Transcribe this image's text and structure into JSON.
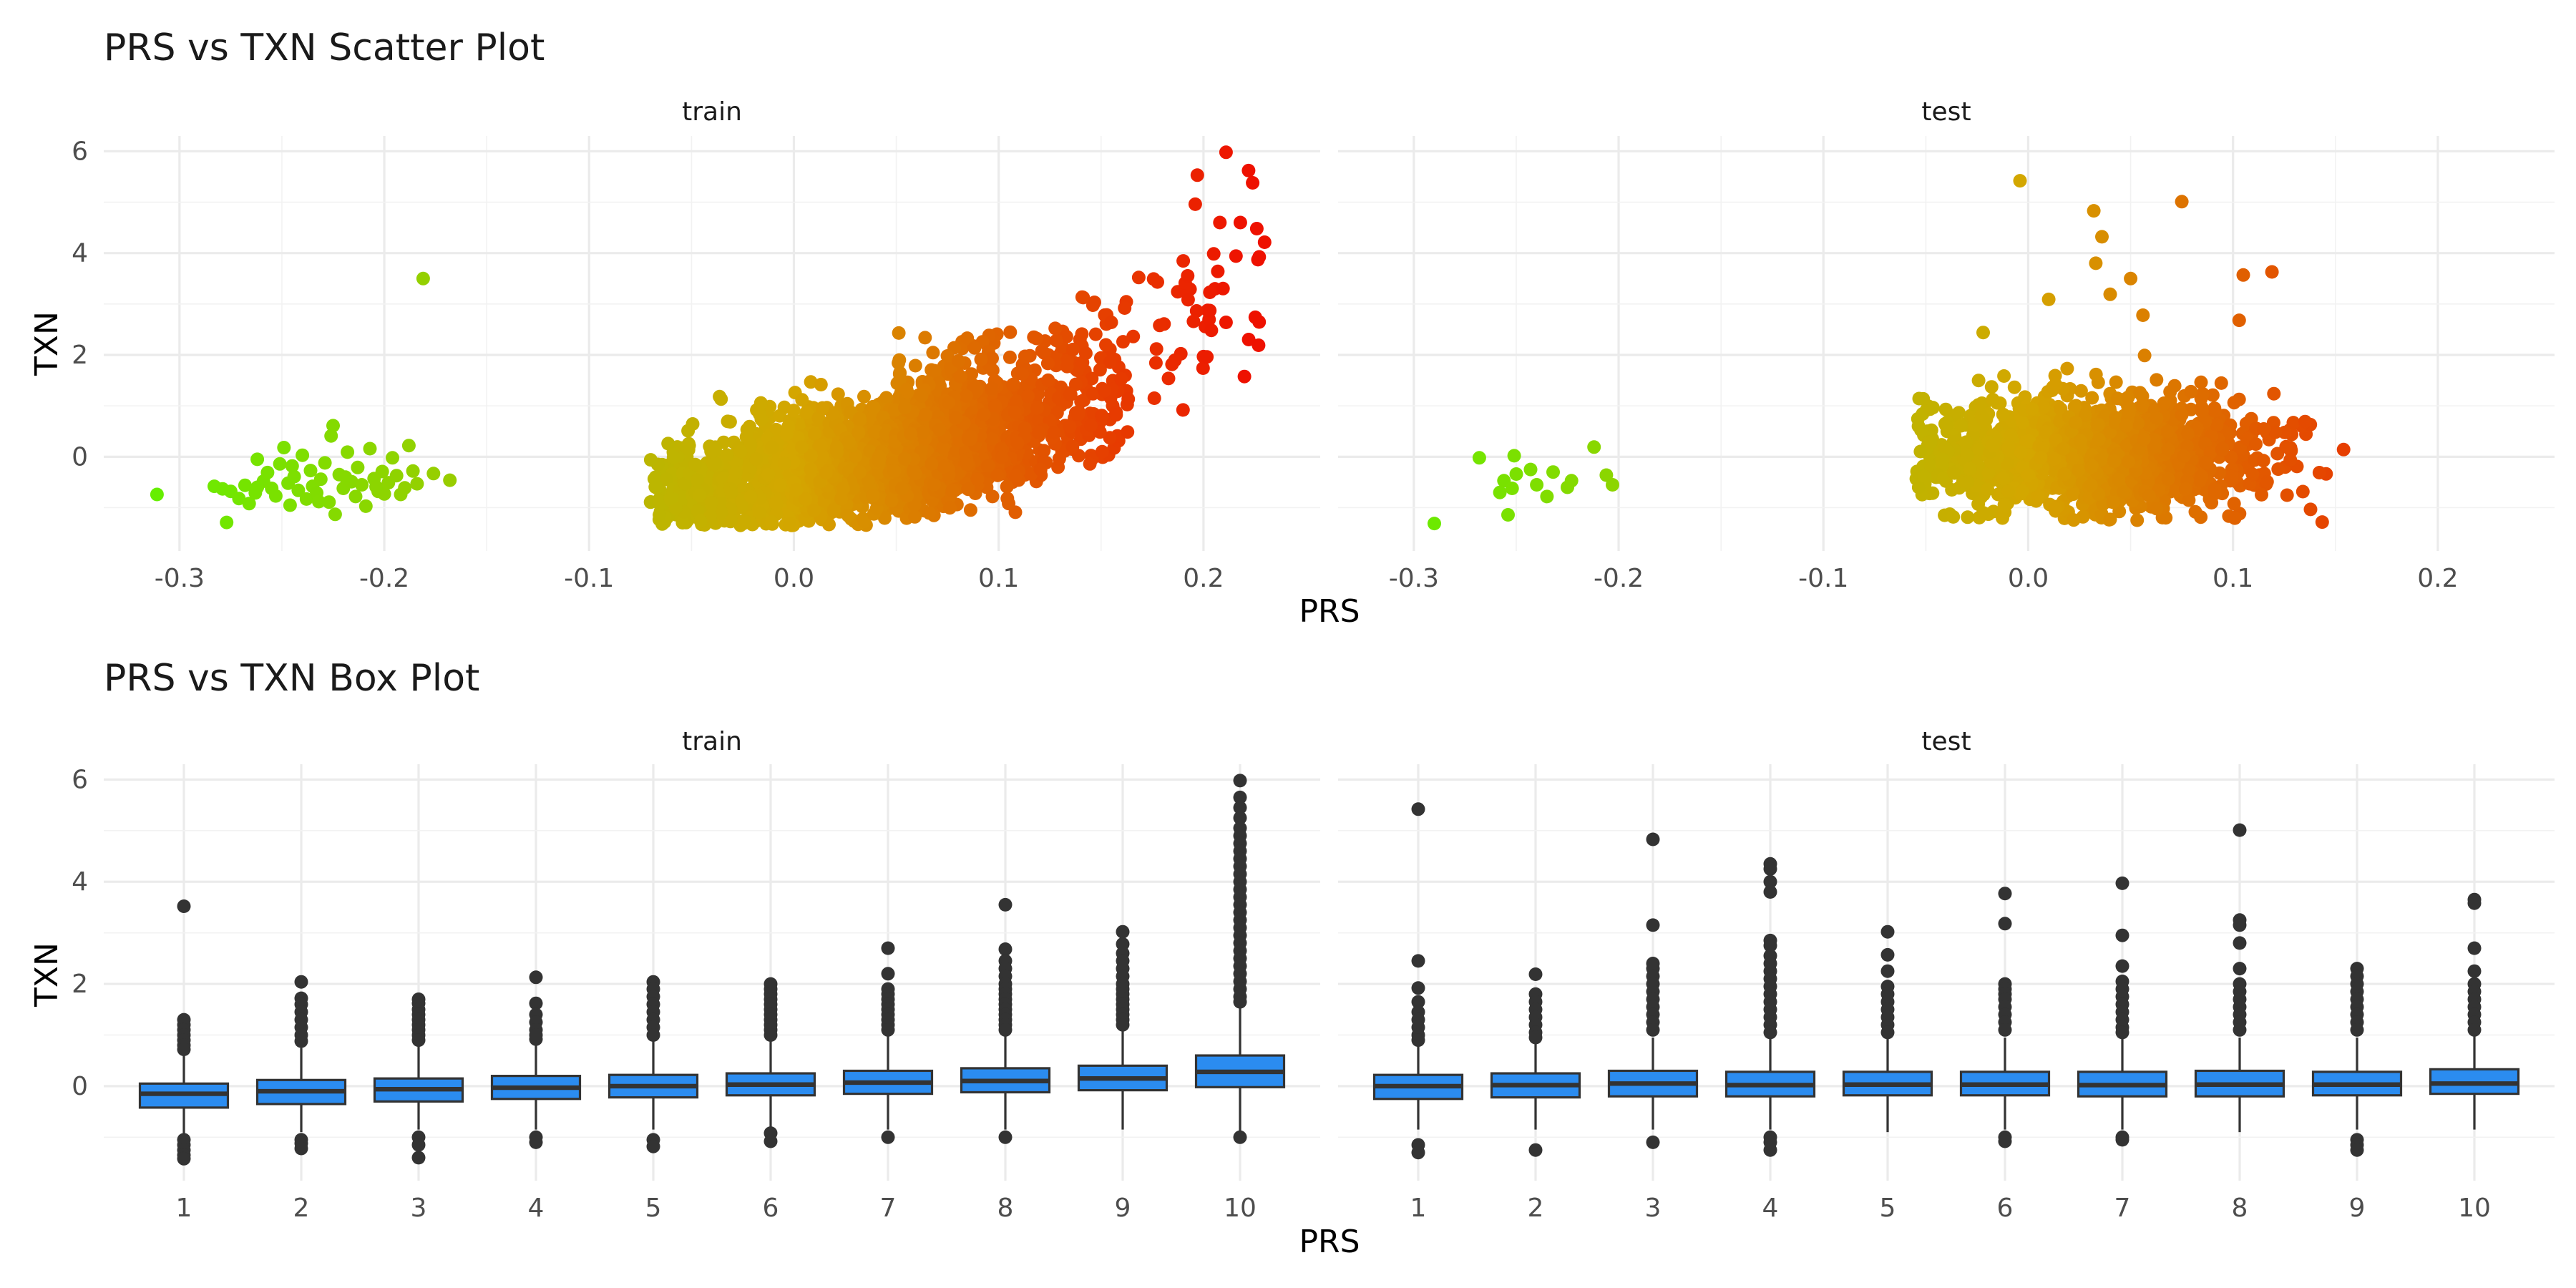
{
  "figure": {
    "scatter_title": "PRS vs TXN Scatter Plot",
    "box_title": "PRS vs TXN Box Plot",
    "x_label": "PRS",
    "y_label": "TXN",
    "facets": [
      "train",
      "test"
    ]
  },
  "chart_data": [
    {
      "type": "scatter",
      "title": "PRS vs TXN Scatter Plot",
      "xlabel": "PRS",
      "ylabel": "TXN",
      "xlim": [
        -0.33,
        0.25
      ],
      "ylim": [
        -1.85,
        6.3
      ],
      "x_ticks": [
        "-0.3",
        "-0.2",
        "-0.1",
        "0.0",
        "0.1",
        "0.2"
      ],
      "x_tick_values": [
        -0.3,
        -0.2,
        -0.1,
        0.0,
        0.1,
        0.2
      ],
      "y_ticks": [
        "0",
        "2",
        "4",
        "6"
      ],
      "y_tick_values": [
        0,
        2,
        4,
        6
      ],
      "grid": true,
      "color_scale": {
        "low": "#66ee00",
        "mid": "#d4a600",
        "high": "#ee1100",
        "by": "PRS"
      },
      "facets": [
        {
          "name": "train",
          "points": [
            [
              -0.311,
              -0.74
            ],
            [
              -0.283,
              -0.58
            ],
            [
              -0.279,
              -0.63
            ],
            [
              -0.277,
              -1.29
            ],
            [
              -0.275,
              -0.68
            ],
            [
              -0.271,
              -0.82
            ],
            [
              -0.268,
              -0.56
            ],
            [
              -0.266,
              -0.92
            ],
            [
              -0.263,
              -0.71
            ],
            [
              -0.262,
              -0.05
            ],
            [
              -0.259,
              -0.48
            ],
            [
              -0.257,
              -0.31
            ],
            [
              -0.255,
              -0.62
            ],
            [
              -0.253,
              -0.77
            ],
            [
              -0.251,
              -0.14
            ],
            [
              -0.249,
              0.18
            ],
            [
              -0.247,
              -0.52
            ],
            [
              -0.246,
              -0.95
            ],
            [
              -0.244,
              -0.39
            ],
            [
              -0.242,
              -0.66
            ],
            [
              -0.24,
              0.03
            ],
            [
              -0.238,
              -0.83
            ],
            [
              -0.236,
              -0.27
            ],
            [
              -0.235,
              -0.58
            ],
            [
              -0.233,
              -0.71
            ],
            [
              -0.231,
              -0.44
            ],
            [
              -0.229,
              -0.12
            ],
            [
              -0.227,
              -0.89
            ],
            [
              -0.226,
              0.41
            ],
            [
              -0.225,
              0.61
            ],
            [
              -0.224,
              -1.13
            ],
            [
              -0.222,
              -0.35
            ],
            [
              -0.22,
              -0.62
            ],
            [
              -0.218,
              0.09
            ],
            [
              -0.216,
              -0.49
            ],
            [
              -0.214,
              -0.78
            ],
            [
              -0.213,
              -0.21
            ],
            [
              -0.211,
              -0.55
            ],
            [
              -0.209,
              -0.97
            ],
            [
              -0.207,
              0.16
            ],
            [
              -0.205,
              -0.43
            ],
            [
              -0.203,
              -0.68
            ],
            [
              -0.201,
              -0.29
            ],
            [
              -0.2,
              -0.73
            ],
            [
              -0.198,
              -0.51
            ],
            [
              -0.196,
              -0.02
            ],
            [
              -0.194,
              -0.37
            ],
            [
              -0.192,
              -0.74
            ],
            [
              -0.19,
              -0.61
            ],
            [
              -0.188,
              0.22
            ],
            [
              -0.186,
              -0.28
            ],
            [
              -0.184,
              -0.53
            ],
            [
              -0.181,
              3.5
            ],
            [
              -0.176,
              -0.33
            ],
            [
              -0.168,
              -0.46
            ],
            [
              -0.262,
              -0.6
            ],
            [
              -0.245,
              -0.18
            ],
            [
              -0.232,
              -0.88
            ],
            [
              -0.219,
              -0.4
            ],
            [
              -0.204,
              -0.59
            ]
          ]
        },
        {
          "name": "test",
          "points": [
            [
              -0.29,
              -1.31
            ],
            [
              -0.268,
              -0.02
            ],
            [
              -0.258,
              -0.7
            ],
            [
              -0.256,
              -0.47
            ],
            [
              -0.254,
              -1.14
            ],
            [
              -0.252,
              -0.62
            ],
            [
              -0.251,
              0.02
            ],
            [
              -0.25,
              -0.34
            ],
            [
              -0.243,
              -0.25
            ],
            [
              -0.24,
              -0.55
            ],
            [
              -0.235,
              -0.78
            ],
            [
              -0.232,
              -0.3
            ],
            [
              -0.225,
              -0.6
            ],
            [
              -0.223,
              -0.47
            ],
            [
              -0.212,
              0.19
            ],
            [
              -0.206,
              -0.36
            ],
            [
              -0.203,
              -0.55
            ],
            [
              -0.004,
              5.42
            ],
            [
              0.032,
              4.83
            ],
            [
              0.036,
              4.32
            ],
            [
              0.075,
              5.01
            ],
            [
              0.105,
              3.57
            ],
            [
              0.119,
              3.63
            ],
            [
              0.05,
              3.5
            ],
            [
              0.033,
              3.8
            ],
            [
              0.04,
              3.19
            ],
            [
              0.01,
              3.09
            ],
            [
              0.103,
              2.68
            ],
            [
              0.056,
              2.78
            ],
            [
              -0.022,
              2.44
            ]
          ]
        }
      ]
    },
    {
      "type": "box",
      "title": "PRS vs TXN Box Plot",
      "xlabel": "PRS",
      "ylabel": "TXN",
      "categories": [
        "1",
        "2",
        "3",
        "4",
        "5",
        "6",
        "7",
        "8",
        "9",
        "10"
      ],
      "ylim": [
        -1.85,
        6.3
      ],
      "y_ticks": [
        "0",
        "2",
        "4",
        "6"
      ],
      "y_tick_values": [
        0,
        2,
        4,
        6
      ],
      "fill_color": "#2b8cf0",
      "grid": true,
      "facets": [
        {
          "name": "train",
          "boxes": [
            {
              "q1": -0.42,
              "median": -0.15,
              "q3": 0.05,
              "low": -0.95,
              "high": 0.6,
              "outliers": [
                3.52,
                1.3,
                1.2,
                1.1,
                1.0,
                0.9,
                0.8,
                0.72,
                -1.05,
                -1.15,
                -1.25,
                -1.35,
                -1.42
              ]
            },
            {
              "q1": -0.35,
              "median": -0.1,
              "q3": 0.12,
              "low": -0.9,
              "high": 0.75,
              "outliers": [
                2.04,
                1.72,
                1.6,
                1.45,
                1.3,
                1.15,
                1.0,
                0.88,
                -1.05,
                -1.12,
                -1.22
              ]
            },
            {
              "q1": -0.3,
              "median": -0.06,
              "q3": 0.15,
              "low": -0.85,
              "high": 0.8,
              "outliers": [
                1.7,
                1.62,
                1.5,
                1.4,
                1.3,
                1.2,
                1.1,
                1.0,
                0.9,
                -1.0,
                -1.15,
                -1.4
              ]
            },
            {
              "q1": -0.25,
              "median": -0.03,
              "q3": 0.2,
              "low": -0.85,
              "high": 0.85,
              "outliers": [
                2.13,
                1.62,
                1.4,
                1.25,
                1.1,
                1.0,
                0.92,
                -1.0,
                -1.1
              ]
            },
            {
              "q1": -0.22,
              "median": 0.0,
              "q3": 0.22,
              "low": -0.85,
              "high": 0.88,
              "outliers": [
                2.04,
                1.9,
                1.75,
                1.6,
                1.45,
                1.3,
                1.15,
                1.0,
                -1.05,
                -1.18
              ]
            },
            {
              "q1": -0.18,
              "median": 0.03,
              "q3": 0.25,
              "low": -0.8,
              "high": 0.95,
              "outliers": [
                2.0,
                1.9,
                1.8,
                1.7,
                1.6,
                1.5,
                1.4,
                1.3,
                1.2,
                1.1,
                1.0,
                -0.92,
                -1.08
              ]
            },
            {
              "q1": -0.15,
              "median": 0.07,
              "q3": 0.3,
              "low": -0.85,
              "high": 1.0,
              "outliers": [
                2.7,
                2.2,
                1.9,
                1.8,
                1.7,
                1.6,
                1.5,
                1.4,
                1.3,
                1.2,
                1.1,
                -1.0
              ]
            },
            {
              "q1": -0.12,
              "median": 0.1,
              "q3": 0.35,
              "low": -0.85,
              "high": 1.05,
              "outliers": [
                3.55,
                2.68,
                2.45,
                2.3,
                2.15,
                2.0,
                1.9,
                1.8,
                1.7,
                1.6,
                1.5,
                1.4,
                1.3,
                1.2,
                1.1,
                -1.0
              ]
            },
            {
              "q1": -0.08,
              "median": 0.15,
              "q3": 0.4,
              "low": -0.85,
              "high": 1.1,
              "outliers": [
                3.02,
                2.78,
                2.6,
                2.45,
                2.3,
                2.15,
                2.0,
                1.9,
                1.8,
                1.7,
                1.6,
                1.5,
                1.4,
                1.3,
                1.2
              ]
            },
            {
              "q1": -0.02,
              "median": 0.28,
              "q3": 0.6,
              "low": -0.95,
              "high": 1.55,
              "outliers": [
                5.98,
                5.65,
                5.45,
                5.25,
                5.05,
                4.9,
                4.75,
                4.6,
                4.45,
                4.3,
                4.15,
                4.0,
                3.85,
                3.7,
                3.55,
                3.4,
                3.25,
                3.1,
                2.95,
                2.8,
                2.65,
                2.5,
                2.35,
                2.2,
                2.05,
                1.9,
                1.75,
                1.65,
                -1.0
              ]
            }
          ]
        },
        {
          "name": "test",
          "boxes": [
            {
              "q1": -0.25,
              "median": 0.0,
              "q3": 0.22,
              "low": -0.85,
              "high": 0.85,
              "outliers": [
                5.42,
                2.45,
                1.92,
                1.65,
                1.45,
                1.3,
                1.15,
                1.0,
                0.9,
                -1.15,
                -1.3
              ]
            },
            {
              "q1": -0.22,
              "median": 0.02,
              "q3": 0.25,
              "low": -0.85,
              "high": 0.9,
              "outliers": [
                2.19,
                1.8,
                1.65,
                1.5,
                1.35,
                1.2,
                1.05,
                0.95,
                -1.25
              ]
            },
            {
              "q1": -0.2,
              "median": 0.05,
              "q3": 0.3,
              "low": -0.85,
              "high": 0.95,
              "outliers": [
                4.83,
                3.15,
                2.4,
                2.3,
                2.15,
                2.0,
                1.85,
                1.7,
                1.55,
                1.4,
                1.25,
                1.1,
                -1.1
              ]
            },
            {
              "q1": -0.2,
              "median": 0.02,
              "q3": 0.28,
              "low": -0.85,
              "high": 0.95,
              "outliers": [
                4.35,
                4.25,
                4.0,
                3.8,
                2.85,
                2.75,
                2.55,
                2.4,
                2.25,
                2.1,
                1.95,
                1.8,
                1.65,
                1.5,
                1.35,
                1.2,
                1.05,
                -1.0,
                -1.1,
                -1.25
              ]
            },
            {
              "q1": -0.18,
              "median": 0.03,
              "q3": 0.28,
              "low": -0.9,
              "high": 0.95,
              "outliers": [
                3.02,
                2.57,
                2.25,
                1.95,
                1.8,
                1.65,
                1.5,
                1.35,
                1.2,
                1.05
              ]
            },
            {
              "q1": -0.18,
              "median": 0.03,
              "q3": 0.28,
              "low": -0.85,
              "high": 0.95,
              "outliers": [
                3.77,
                3.18,
                2.0,
                1.9,
                1.8,
                1.7,
                1.55,
                1.4,
                1.25,
                1.1,
                -1.0,
                -1.08
              ]
            },
            {
              "q1": -0.2,
              "median": 0.02,
              "q3": 0.28,
              "low": -0.85,
              "high": 0.95,
              "outliers": [
                3.97,
                2.95,
                2.35,
                2.05,
                1.9,
                1.75,
                1.6,
                1.45,
                1.3,
                1.15,
                1.05,
                -1.0,
                -1.05
              ]
            },
            {
              "q1": -0.2,
              "median": 0.03,
              "q3": 0.3,
              "low": -0.9,
              "high": 0.95,
              "outliers": [
                5.01,
                3.25,
                3.15,
                2.8,
                2.3,
                2.0,
                1.85,
                1.7,
                1.55,
                1.4,
                1.25,
                1.1
              ]
            },
            {
              "q1": -0.18,
              "median": 0.03,
              "q3": 0.28,
              "low": -0.85,
              "high": 0.95,
              "outliers": [
                2.3,
                2.15,
                2.0,
                1.85,
                1.7,
                1.55,
                1.4,
                1.25,
                1.1,
                -1.05,
                -1.15,
                -1.25
              ]
            },
            {
              "q1": -0.15,
              "median": 0.05,
              "q3": 0.33,
              "low": -0.85,
              "high": 1.0,
              "outliers": [
                3.65,
                3.58,
                2.7,
                2.25,
                2.0,
                1.85,
                1.7,
                1.55,
                1.4,
                1.25,
                1.1
              ]
            }
          ]
        }
      ]
    }
  ]
}
